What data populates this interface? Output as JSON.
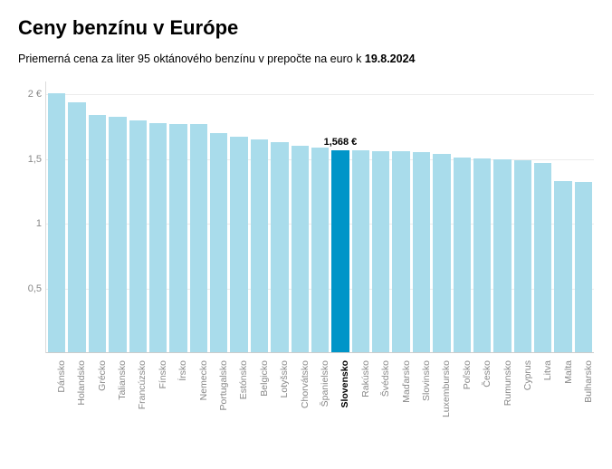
{
  "title": "Ceny benzínu v Európe",
  "subtitle_prefix": "Priemerná cena za liter 95 oktánového benzínu v prepočte na euro k ",
  "subtitle_date": "19.8.2024",
  "chart": {
    "type": "bar",
    "ymin": 0,
    "ymax": 2.1,
    "yticks": [
      {
        "value": 0.5,
        "label": "0,5"
      },
      {
        "value": 1.0,
        "label": "1"
      },
      {
        "value": 1.5,
        "label": "1,5"
      },
      {
        "value": 2.0,
        "label": "2 €"
      }
    ],
    "bar_color": "#a9dceb",
    "highlight_color": "#0095c8",
    "grid_color": "#ececec",
    "axis_color": "#dcdcdc",
    "label_color": "#888888",
    "background_color": "#ffffff",
    "categories": [
      "Dánsko",
      "Holandsko",
      "Grécko",
      "Taliansko",
      "Francúzsko",
      "Fínsko",
      "Írsko",
      "Nemecko",
      "Portugalsko",
      "Estónsko",
      "Belgicko",
      "Lotyšsko",
      "Chorvátsko",
      "Španielsko",
      "Slovensko",
      "Rakúsko",
      "Švédsko",
      "Maďarsko",
      "Slovinsko",
      "Luxembursko",
      "Poľsko",
      "Česko",
      "Rumunsko",
      "Cyprus",
      "Litva",
      "Malta",
      "Bulharsko"
    ],
    "values": [
      2.01,
      1.94,
      1.84,
      1.83,
      1.8,
      1.78,
      1.77,
      1.77,
      1.7,
      1.67,
      1.65,
      1.63,
      1.6,
      1.59,
      1.568,
      1.565,
      1.56,
      1.56,
      1.555,
      1.54,
      1.51,
      1.505,
      1.5,
      1.49,
      1.47,
      1.33,
      1.32
    ],
    "highlight_index": 14,
    "highlight_callout": "1,568 €"
  }
}
